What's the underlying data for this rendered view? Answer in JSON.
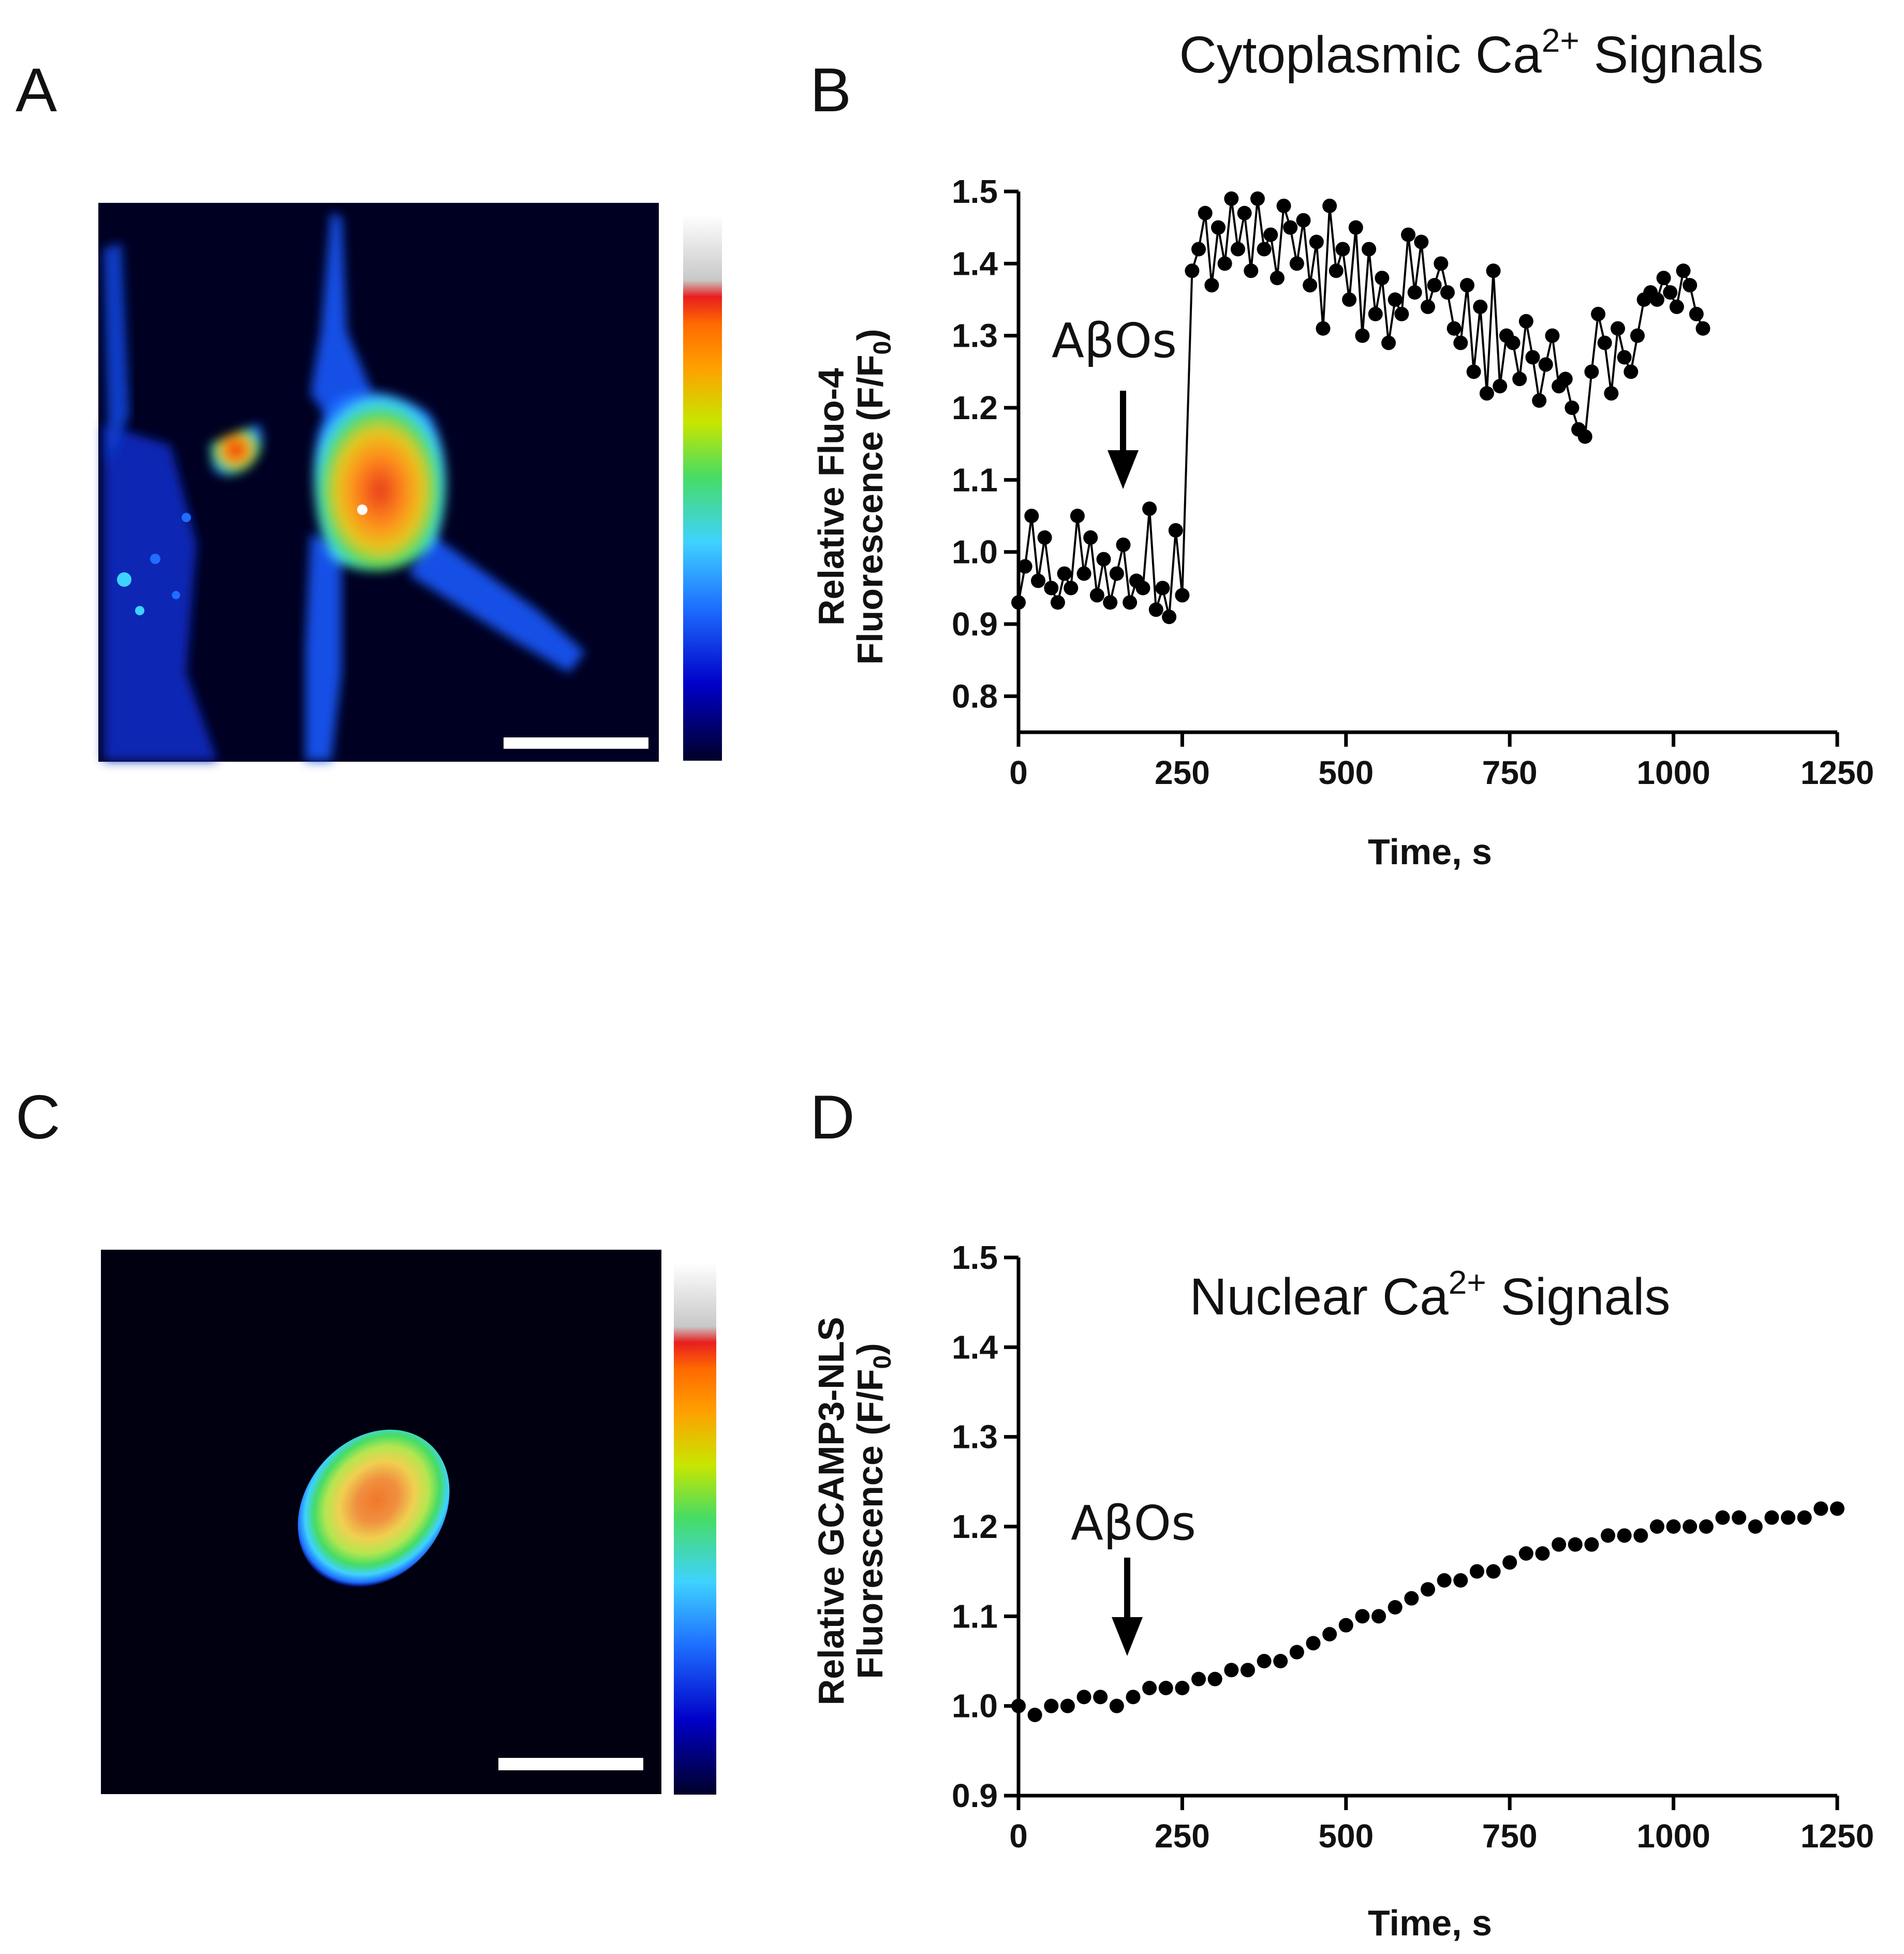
{
  "panels": {
    "a": {
      "letter": "A"
    },
    "b": {
      "letter": "B"
    },
    "c": {
      "letter": "C"
    },
    "d": {
      "letter": "D"
    }
  },
  "colors": {
    "ink": "#000000",
    "colormap": [
      "#000028",
      "#0000c8",
      "#1e6eff",
      "#3fd2ff",
      "#46dc64",
      "#c8e600",
      "#ffa000",
      "#ff6a00",
      "#e81e1e",
      "#e8e8e8"
    ]
  },
  "chart_data": [
    {
      "id": "chart-b",
      "type": "line",
      "title": "Cytoplasmic Ca",
      "title_superscript": "2+",
      "title_tail": " Signals",
      "xlabel": "Time, s",
      "ylabel_line1": "Relative Fluo-4",
      "ylabel_line2": "Fluorescence (F/F",
      "ylabel_sub": "0",
      "ylabel_tail": ")",
      "xlim": [
        0,
        1250
      ],
      "ylim": [
        0.75,
        1.5
      ],
      "xticks": [
        0,
        250,
        500,
        750,
        1000,
        1250
      ],
      "xtick_labels": [
        "0",
        "250",
        "500",
        "750",
        "1000",
        "1250"
      ],
      "yticks": [
        0.8,
        0.9,
        1.0,
        1.1,
        1.2,
        1.3,
        1.4,
        1.5
      ],
      "ytick_labels": [
        "0.8",
        "0.9",
        "1.0",
        "1.1",
        "1.2",
        "1.3",
        "1.4",
        "1.5"
      ],
      "annotation": {
        "text": "AβOs",
        "x": 160
      },
      "series": [
        {
          "name": "Fluo-4",
          "x": [
            0,
            10,
            20,
            30,
            40,
            50,
            60,
            70,
            80,
            90,
            100,
            110,
            120,
            130,
            140,
            150,
            160,
            170,
            180,
            190,
            200,
            210,
            220,
            230,
            240,
            250,
            265,
            275,
            285,
            295,
            305,
            315,
            325,
            335,
            345,
            355,
            365,
            375,
            385,
            395,
            405,
            415,
            425,
            435,
            445,
            455,
            465,
            475,
            485,
            495,
            505,
            515,
            525,
            535,
            545,
            555,
            565,
            575,
            585,
            595,
            605,
            615,
            625,
            635,
            645,
            655,
            665,
            675,
            685,
            695,
            705,
            715,
            725,
            735,
            745,
            755,
            765,
            775,
            785,
            795,
            805,
            815,
            825,
            835,
            845,
            855,
            865,
            875,
            885,
            895,
            905,
            915,
            925,
            935,
            945,
            955,
            965,
            975,
            985,
            995,
            1005,
            1015,
            1025,
            1035,
            1045
          ],
          "y": [
            0.93,
            0.98,
            1.05,
            0.96,
            1.02,
            0.95,
            0.93,
            0.97,
            0.95,
            1.05,
            0.97,
            1.02,
            0.94,
            0.99,
            0.93,
            0.97,
            1.01,
            0.93,
            0.96,
            0.95,
            1.06,
            0.92,
            0.95,
            0.91,
            1.03,
            0.94,
            1.39,
            1.42,
            1.47,
            1.37,
            1.45,
            1.4,
            1.49,
            1.42,
            1.47,
            1.39,
            1.49,
            1.42,
            1.44,
            1.38,
            1.48,
            1.45,
            1.4,
            1.46,
            1.37,
            1.43,
            1.31,
            1.48,
            1.39,
            1.42,
            1.35,
            1.45,
            1.3,
            1.42,
            1.33,
            1.38,
            1.29,
            1.35,
            1.33,
            1.44,
            1.36,
            1.43,
            1.34,
            1.37,
            1.4,
            1.36,
            1.31,
            1.29,
            1.37,
            1.25,
            1.34,
            1.22,
            1.39,
            1.23,
            1.3,
            1.29,
            1.24,
            1.32,
            1.27,
            1.21,
            1.26,
            1.3,
            1.23,
            1.24,
            1.2,
            1.17,
            1.16,
            1.25,
            1.33,
            1.29,
            1.22,
            1.31,
            1.27,
            1.25,
            1.3,
            1.35,
            1.36,
            1.35,
            1.38,
            1.36,
            1.34,
            1.39,
            1.37,
            1.33,
            1.31
          ]
        }
      ]
    },
    {
      "id": "chart-d",
      "type": "scatter",
      "title": "Nuclear Ca",
      "title_superscript": "2+",
      "title_tail": " Signals",
      "xlabel": "Time, s",
      "ylabel_line1": "Relative GCAMP3-NLS",
      "ylabel_line2": "Fluorescence (F/F",
      "ylabel_sub": "0",
      "ylabel_tail": ")",
      "xlim": [
        0,
        1250
      ],
      "ylim": [
        0.9,
        1.5
      ],
      "xticks": [
        0,
        250,
        500,
        750,
        1000,
        1250
      ],
      "xtick_labels": [
        "0",
        "250",
        "500",
        "750",
        "1000",
        "1250"
      ],
      "yticks": [
        0.9,
        1.0,
        1.1,
        1.2,
        1.3,
        1.4,
        1.5
      ],
      "ytick_labels": [
        "0.9",
        "1.0",
        "1.1",
        "1.2",
        "1.3",
        "1.4",
        "1.5"
      ],
      "annotation": {
        "text": "AβOs",
        "x": 165
      },
      "series": [
        {
          "name": "GCAMP3-NLS",
          "x": [
            0,
            25,
            50,
            75,
            100,
            125,
            150,
            175,
            200,
            225,
            250,
            275,
            300,
            325,
            350,
            375,
            400,
            425,
            450,
            475,
            500,
            525,
            550,
            575,
            600,
            625,
            650,
            675,
            700,
            725,
            750,
            775,
            800,
            825,
            850,
            875,
            900,
            925,
            950,
            975,
            1000,
            1025,
            1050,
            1075,
            1100,
            1125,
            1150,
            1175,
            1200,
            1225,
            1250
          ],
          "y": [
            1.0,
            0.99,
            1.0,
            1.0,
            1.01,
            1.01,
            1.0,
            1.01,
            1.02,
            1.02,
            1.02,
            1.03,
            1.03,
            1.04,
            1.04,
            1.05,
            1.05,
            1.06,
            1.07,
            1.08,
            1.09,
            1.1,
            1.1,
            1.11,
            1.12,
            1.13,
            1.14,
            1.14,
            1.15,
            1.15,
            1.16,
            1.17,
            1.17,
            1.18,
            1.18,
            1.18,
            1.19,
            1.19,
            1.19,
            1.2,
            1.2,
            1.2,
            1.2,
            1.21,
            1.21,
            1.2,
            1.21,
            1.21,
            1.21,
            1.22,
            1.22
          ]
        }
      ]
    }
  ]
}
